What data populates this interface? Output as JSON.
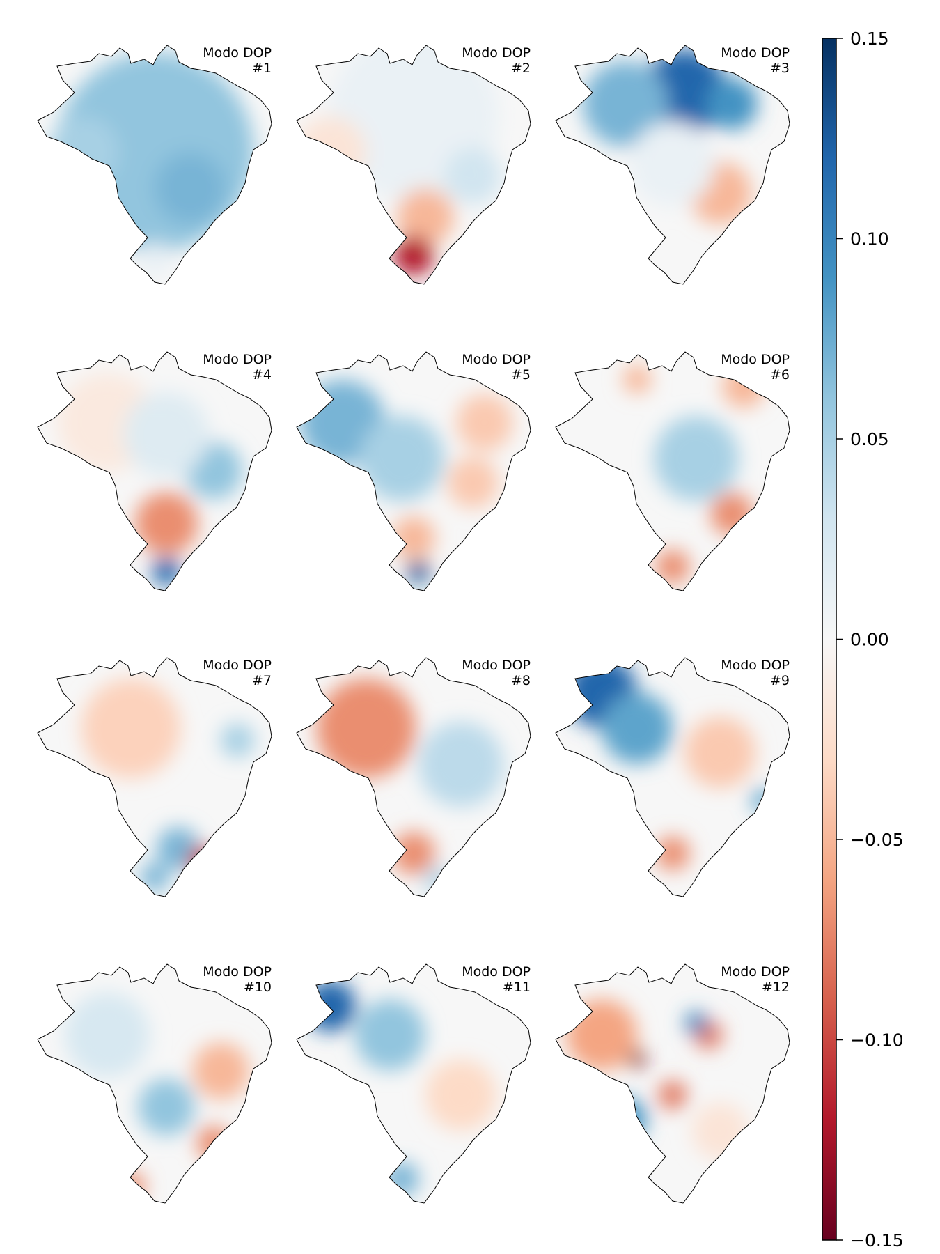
{
  "chart_data": {
    "type": "heatmap",
    "description_type": "choropleth-small-multiples",
    "panels": [
      {
        "title_line1": "Modo DOP",
        "title_line2": "#1",
        "blobs": [
          [
            0.5,
            0.45,
            0.7,
            0.06
          ],
          [
            0.45,
            0.25,
            0.35,
            0.06
          ],
          [
            0.65,
            0.6,
            0.25,
            0.07
          ],
          [
            0.2,
            0.45,
            0.25,
            0.05
          ],
          [
            0.5,
            0.9,
            0.12,
            0.01
          ]
        ]
      },
      {
        "title_line1": "Modo DOP",
        "title_line2": "#2",
        "blobs": [
          [
            0.5,
            0.3,
            0.6,
            0.01
          ],
          [
            0.15,
            0.45,
            0.25,
            -0.02
          ],
          [
            0.55,
            0.72,
            0.2,
            -0.05
          ],
          [
            0.5,
            0.88,
            0.14,
            -0.12
          ],
          [
            0.75,
            0.55,
            0.2,
            0.03
          ]
        ]
      },
      {
        "title_line1": "Modo DOP",
        "title_line2": "#3",
        "blobs": [
          [
            0.55,
            0.2,
            0.3,
            0.12
          ],
          [
            0.3,
            0.25,
            0.3,
            0.07
          ],
          [
            0.75,
            0.25,
            0.18,
            0.09
          ],
          [
            0.7,
            0.62,
            0.22,
            -0.05
          ],
          [
            0.5,
            0.5,
            0.3,
            0.01
          ]
        ]
      },
      {
        "title_line1": "Modo DOP",
        "title_line2": "#4",
        "blobs": [
          [
            0.3,
            0.3,
            0.35,
            -0.015
          ],
          [
            0.75,
            0.5,
            0.2,
            0.06
          ],
          [
            0.55,
            0.72,
            0.22,
            -0.07
          ],
          [
            0.55,
            0.92,
            0.1,
            0.12
          ],
          [
            0.55,
            0.35,
            0.3,
            0.02
          ]
        ]
      },
      {
        "title_line1": "Modo DOP",
        "title_line2": "#5",
        "blobs": [
          [
            0.2,
            0.3,
            0.3,
            0.07
          ],
          [
            0.45,
            0.45,
            0.3,
            0.05
          ],
          [
            0.8,
            0.3,
            0.2,
            -0.04
          ],
          [
            0.75,
            0.55,
            0.18,
            -0.04
          ],
          [
            0.5,
            0.78,
            0.15,
            -0.05
          ],
          [
            0.52,
            0.92,
            0.08,
            0.13
          ]
        ]
      },
      {
        "title_line1": "Modo DOP",
        "title_line2": "#6",
        "blobs": [
          [
            0.35,
            0.12,
            0.1,
            -0.05
          ],
          [
            0.6,
            0.45,
            0.3,
            0.05
          ],
          [
            0.8,
            0.15,
            0.15,
            -0.05
          ],
          [
            0.75,
            0.68,
            0.15,
            -0.07
          ],
          [
            0.5,
            0.9,
            0.12,
            -0.07
          ]
        ]
      },
      {
        "title_line1": "Modo DOP",
        "title_line2": "#7",
        "blobs": [
          [
            0.4,
            0.3,
            0.35,
            -0.035
          ],
          [
            0.6,
            0.8,
            0.15,
            0.07
          ],
          [
            0.7,
            0.85,
            0.1,
            -0.1
          ],
          [
            0.5,
            0.92,
            0.1,
            0.07
          ],
          [
            0.85,
            0.35,
            0.12,
            0.05
          ]
        ]
      },
      {
        "title_line1": "Modo DOP",
        "title_line2": "#8",
        "blobs": [
          [
            0.3,
            0.3,
            0.35,
            -0.07
          ],
          [
            0.7,
            0.45,
            0.3,
            0.04
          ],
          [
            0.5,
            0.82,
            0.15,
            -0.07
          ],
          [
            0.6,
            0.93,
            0.1,
            0.04
          ]
        ]
      },
      {
        "title_line1": "Modo DOP",
        "title_line2": "#9",
        "blobs": [
          [
            0.2,
            0.15,
            0.25,
            0.12
          ],
          [
            0.35,
            0.3,
            0.25,
            0.08
          ],
          [
            0.7,
            0.4,
            0.25,
            -0.04
          ],
          [
            0.5,
            0.82,
            0.12,
            -0.07
          ],
          [
            0.88,
            0.6,
            0.08,
            0.08
          ]
        ]
      },
      {
        "title_line1": "Modo DOP",
        "title_line2": "#10",
        "blobs": [
          [
            0.3,
            0.3,
            0.3,
            0.025
          ],
          [
            0.55,
            0.6,
            0.2,
            0.06
          ],
          [
            0.78,
            0.45,
            0.2,
            -0.05
          ],
          [
            0.75,
            0.75,
            0.12,
            -0.07
          ],
          [
            0.4,
            0.93,
            0.1,
            -0.07
          ]
        ]
      },
      {
        "title_line1": "Modo DOP",
        "title_line2": "#11",
        "blobs": [
          [
            0.15,
            0.18,
            0.18,
            0.12
          ],
          [
            0.4,
            0.3,
            0.25,
            0.06
          ],
          [
            0.7,
            0.55,
            0.25,
            -0.03
          ],
          [
            0.45,
            0.9,
            0.12,
            0.07
          ]
        ]
      },
      {
        "title_line1": "Modo DOP",
        "title_line2": "#12",
        "blobs": [
          [
            0.2,
            0.3,
            0.25,
            -0.06
          ],
          [
            0.35,
            0.4,
            0.06,
            -0.14
          ],
          [
            0.5,
            0.55,
            0.1,
            -0.08
          ],
          [
            0.3,
            0.65,
            0.15,
            0.09
          ],
          [
            0.65,
            0.3,
            0.1,
            -0.08
          ],
          [
            0.7,
            0.7,
            0.2,
            -0.02
          ],
          [
            0.6,
            0.25,
            0.08,
            0.1
          ]
        ]
      }
    ],
    "colorbar": {
      "vmin": -0.15,
      "vmax": 0.15,
      "cmap": "RdBu",
      "ticks": [
        0.15,
        0.1,
        0.05,
        0.0,
        -0.05,
        -0.1,
        -0.15
      ],
      "tick_labels": [
        "0.15",
        "0.10",
        "0.05",
        "0.00",
        "−0.05",
        "−0.10",
        "−0.15"
      ]
    },
    "colors": {
      "low": "#67001f",
      "mid": "#f7f7f7",
      "high": "#053061"
    }
  }
}
